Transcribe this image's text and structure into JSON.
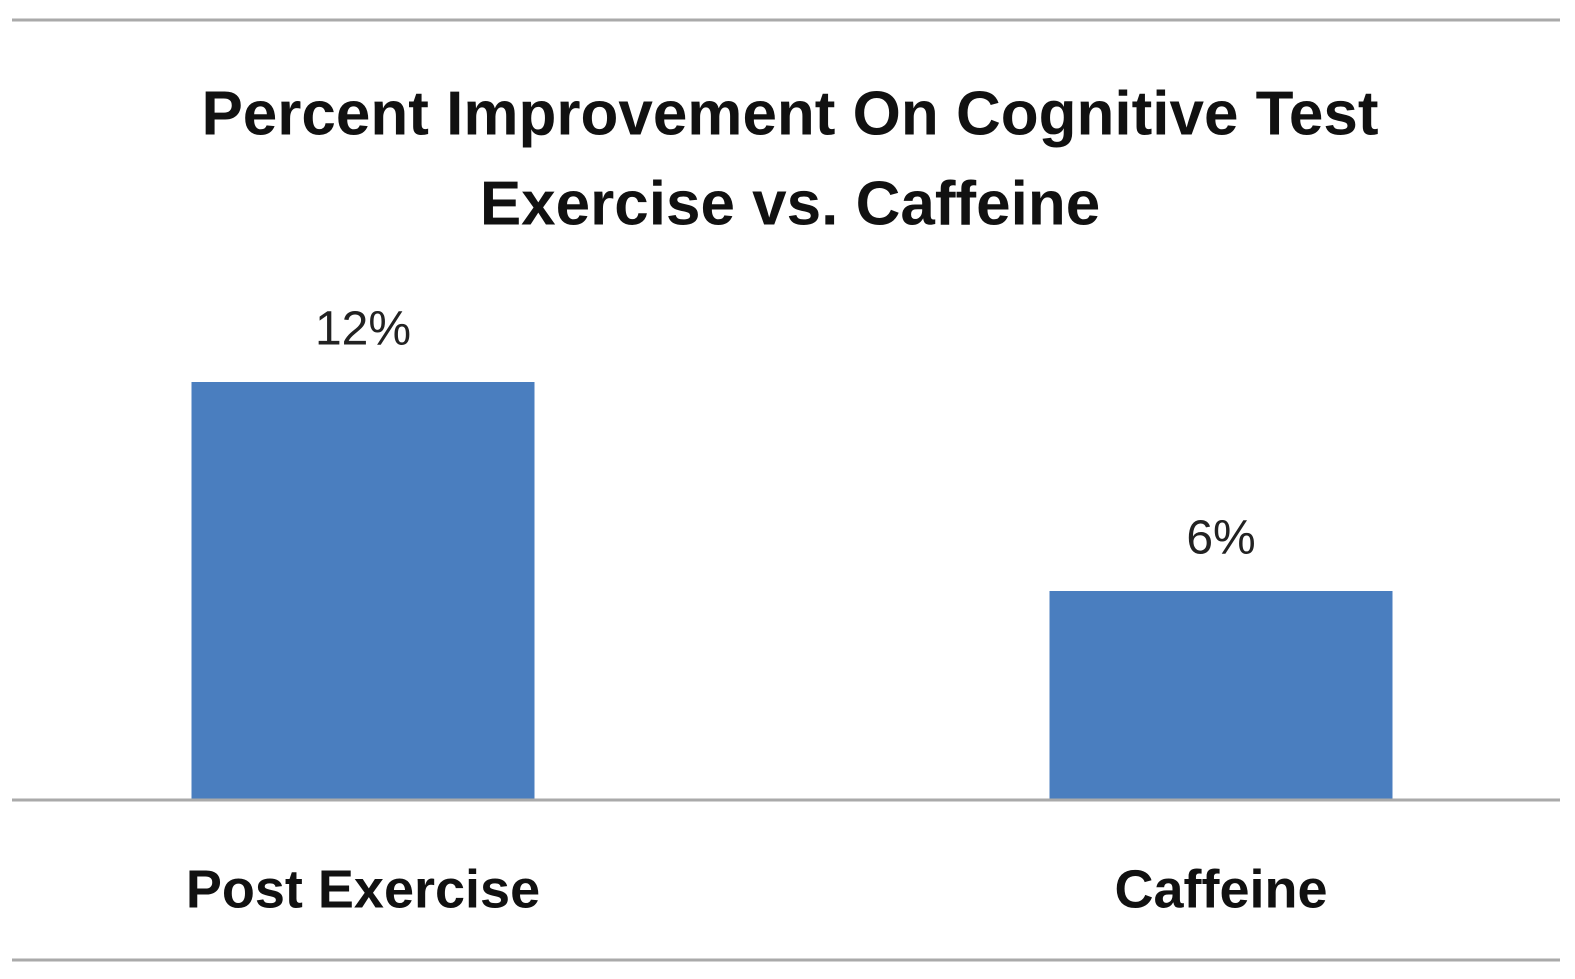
{
  "chart_data": {
    "type": "bar",
    "title": "Percent Improvement On Cognitive Test",
    "subtitle": "Exercise vs. Caffeine",
    "categories": [
      "Post Exercise",
      "Caffeine"
    ],
    "values": [
      12,
      6
    ],
    "value_labels": [
      "12%",
      "6%"
    ],
    "color": "#4a7ebf"
  }
}
